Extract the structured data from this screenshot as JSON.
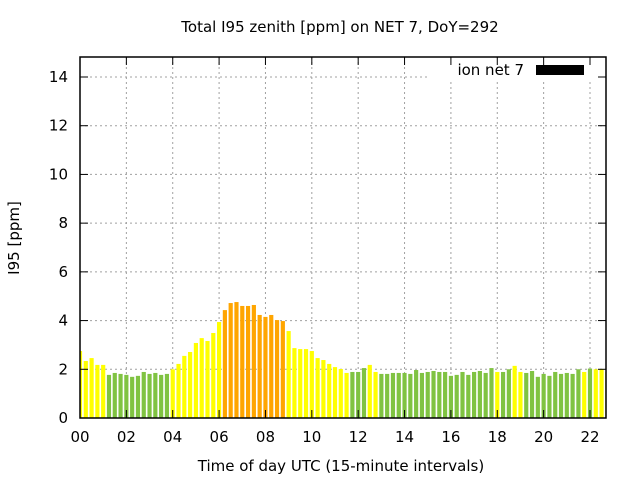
{
  "chart_data": {
    "type": "bar",
    "title": "Total I95 zenith [ppm] on NET 7, DoY=292",
    "xlabel": "Time of day UTC (15-minute intervals)",
    "ylabel": "I95 [ppm]",
    "xlim": [
      0,
      22.69
    ],
    "ylim": [
      0,
      14.8
    ],
    "grid": true,
    "legend": {
      "label": "ion net 7",
      "placement": "top-right"
    },
    "x_tick_values": [
      0,
      2,
      4,
      6,
      8,
      10,
      12,
      14,
      16,
      18,
      20,
      22
    ],
    "x_tick_labels": [
      "00",
      "02",
      "04",
      "06",
      "08",
      "10",
      "12",
      "14",
      "16",
      "18",
      "20",
      "22"
    ],
    "y_ticks": [
      0,
      2,
      4,
      6,
      8,
      10,
      12,
      14
    ],
    "interval_hours": 0.25,
    "values": [
      2.75,
      2.34,
      2.46,
      2.18,
      2.18,
      1.77,
      1.85,
      1.81,
      1.77,
      1.69,
      1.73,
      1.89,
      1.81,
      1.85,
      1.77,
      1.81,
      2.0,
      2.22,
      2.55,
      2.71,
      3.08,
      3.28,
      3.16,
      3.49,
      3.94,
      4.43,
      4.72,
      4.76,
      4.6,
      4.6,
      4.64,
      4.23,
      4.15,
      4.23,
      4.02,
      3.98,
      3.57,
      2.87,
      2.83,
      2.83,
      2.75,
      2.46,
      2.38,
      2.22,
      2.09,
      2.01,
      1.85,
      1.89,
      1.89,
      2.05,
      2.18,
      1.89,
      1.81,
      1.81,
      1.85,
      1.85,
      1.85,
      1.81,
      1.97,
      1.85,
      1.89,
      1.93,
      1.89,
      1.89,
      1.73,
      1.77,
      1.89,
      1.77,
      1.89,
      1.93,
      1.85,
      2.05,
      1.89,
      1.89,
      2.0,
      2.14,
      1.89,
      1.85,
      1.93,
      1.69,
      1.81,
      1.73,
      1.89,
      1.81,
      1.85,
      1.81,
      2.0,
      1.89,
      2.03,
      2.0,
      2.0,
      1.89
    ],
    "levels": "yyyyyggggggggggg yyyyyyyyyoooooooooooyyyyyyyyyyyggg yyggggggggggggggggggggy ggyyggggggggggyg yyyg",
    "level_colors": {
      "g": "#80c342",
      "y": "#ffff00",
      "o": "#ffa500"
    },
    "legend_color": "#000000"
  }
}
